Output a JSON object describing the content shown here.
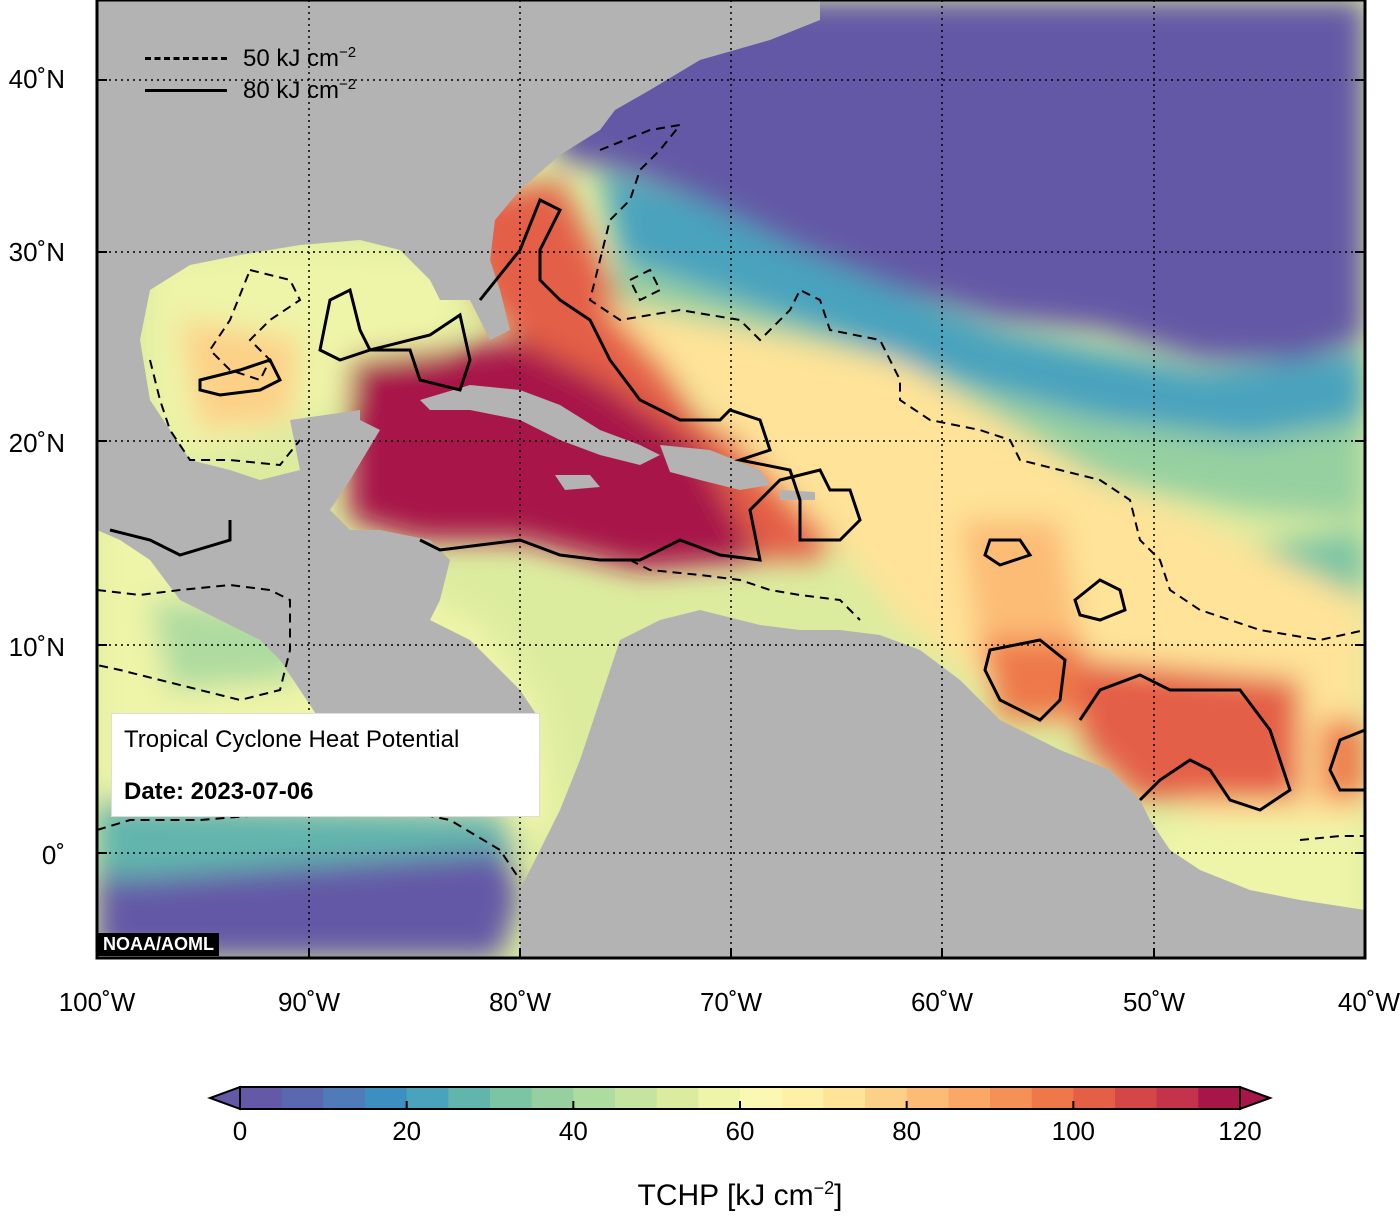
{
  "map": {
    "title": "Tropical Cyclone Heat Potential",
    "date": "Date: 2023-07-06",
    "credit": "NOAA/AOML",
    "lat_labels": [
      "40˚N",
      "30˚N",
      "20˚N",
      "10˚N",
      "0˚"
    ],
    "lon_labels": [
      "100˚W",
      "90˚W",
      "80˚W",
      "70˚W",
      "60˚W",
      "50˚W",
      "40˚W"
    ],
    "region": {
      "lon_range": [
        -100,
        -40
      ],
      "lat_range": [
        -5,
        45
      ]
    },
    "land_color": "#b3b3b3",
    "contour_levels": [
      50,
      80
    ]
  },
  "legend": {
    "items": [
      {
        "label": "50 kJ cm",
        "sup": "−2",
        "style": "dashed"
      },
      {
        "label": "80 kJ cm",
        "sup": "−2",
        "style": "solid"
      }
    ]
  },
  "colorbar": {
    "title": "TCHP [kJ cm",
    "title_sup": "−2",
    "title_end": "]",
    "tick_labels": [
      "0",
      "20",
      "40",
      "60",
      "80",
      "100",
      "120"
    ],
    "min": 0,
    "max": 120,
    "colors": [
      "#6459a6",
      "#5a68b0",
      "#4f7bb9",
      "#3d8fc1",
      "#4aa3bd",
      "#62b5ad",
      "#7bc4a4",
      "#96d0a0",
      "#aedba0",
      "#c5e49f",
      "#dcec9f",
      "#eef4a8",
      "#fbf8b4",
      "#fef0a7",
      "#fee398",
      "#fdd087",
      "#fcbc76",
      "#fba866",
      "#f59157",
      "#ee784a",
      "#e45f46",
      "#d54648",
      "#c5324b",
      "#a81549"
    ]
  }
}
